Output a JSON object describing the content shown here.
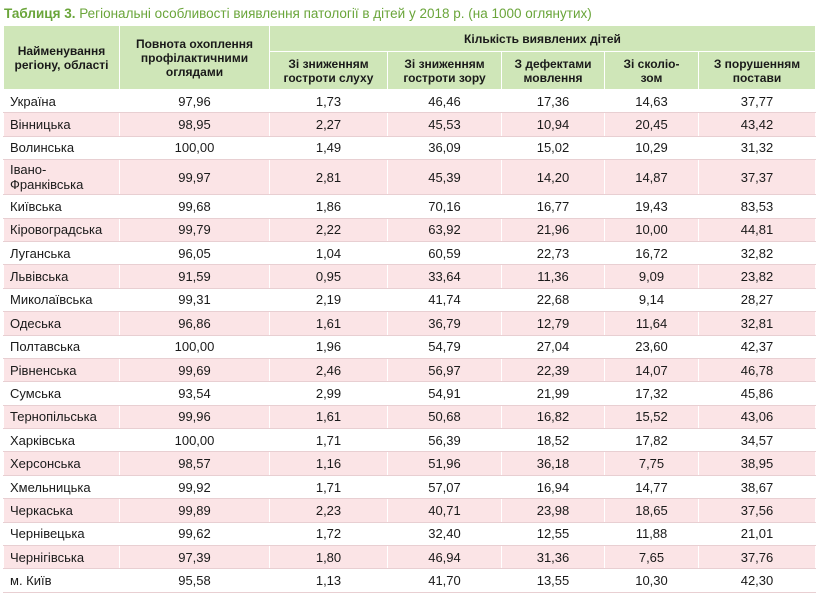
{
  "caption": {
    "label": "Таблиця 3.",
    "text": "Регіональні особливості виявлення патології в дітей у 2018 р. (на 1000 оглянутих)"
  },
  "header": {
    "region": "Найменування регіону, області",
    "coverage": "Повнота охоплення профілактичними оглядами",
    "group": "Кількість виявлених дітей",
    "hearing": "Зі зниженням гостроти слуху",
    "vision": "Зі зниженням гостроти зору",
    "speech": "З дефектами мовлення",
    "scoliosis": "Зі сколіо-зом",
    "posture": "З порушенням постави"
  },
  "rows": [
    {
      "region": "Україна",
      "coverage": "97,96",
      "hearing": "1,73",
      "vision": "46,46",
      "speech": "17,36",
      "scoliosis": "14,63",
      "posture": "37,77"
    },
    {
      "region": "Вінницька",
      "coverage": "98,95",
      "hearing": "2,27",
      "vision": "45,53",
      "speech": "10,94",
      "scoliosis": "20,45",
      "posture": "43,42"
    },
    {
      "region": "Волинська",
      "coverage": "100,00",
      "hearing": "1,49",
      "vision": "36,09",
      "speech": "15,02",
      "scoliosis": "10,29",
      "posture": "31,32"
    },
    {
      "region": "Івано-Франківська",
      "coverage": "99,97",
      "hearing": "2,81",
      "vision": "45,39",
      "speech": "14,20",
      "scoliosis": "14,87",
      "posture": "37,37"
    },
    {
      "region": "Київська",
      "coverage": "99,68",
      "hearing": "1,86",
      "vision": "70,16",
      "speech": "16,77",
      "scoliosis": "19,43",
      "posture": "83,53"
    },
    {
      "region": "Кіровоградська",
      "coverage": "99,79",
      "hearing": "2,22",
      "vision": "63,92",
      "speech": "21,96",
      "scoliosis": "10,00",
      "posture": "44,81"
    },
    {
      "region": "Луганська",
      "coverage": "96,05",
      "hearing": "1,04",
      "vision": "60,59",
      "speech": "22,73",
      "scoliosis": "16,72",
      "posture": "32,82"
    },
    {
      "region": "Львівська",
      "coverage": "91,59",
      "hearing": "0,95",
      "vision": "33,64",
      "speech": "11,36",
      "scoliosis": "9,09",
      "posture": "23,82"
    },
    {
      "region": "Миколаївська",
      "coverage": "99,31",
      "hearing": "2,19",
      "vision": "41,74",
      "speech": "22,68",
      "scoliosis": "9,14",
      "posture": "28,27"
    },
    {
      "region": "Одеська",
      "coverage": "96,86",
      "hearing": "1,61",
      "vision": "36,79",
      "speech": "12,79",
      "scoliosis": "11,64",
      "posture": "32,81"
    },
    {
      "region": "Полтавська",
      "coverage": "100,00",
      "hearing": "1,96",
      "vision": "54,79",
      "speech": "27,04",
      "scoliosis": "23,60",
      "posture": "42,37"
    },
    {
      "region": "Рівненська",
      "coverage": "99,69",
      "hearing": "2,46",
      "vision": "56,97",
      "speech": "22,39",
      "scoliosis": "14,07",
      "posture": "46,78"
    },
    {
      "region": "Сумська",
      "coverage": "93,54",
      "hearing": "2,99",
      "vision": "54,91",
      "speech": "21,99",
      "scoliosis": "17,32",
      "posture": "45,86"
    },
    {
      "region": "Тернопільська",
      "coverage": "99,96",
      "hearing": "1,61",
      "vision": "50,68",
      "speech": "16,82",
      "scoliosis": "15,52",
      "posture": "43,06"
    },
    {
      "region": "Харківська",
      "coverage": "100,00",
      "hearing": "1,71",
      "vision": "56,39",
      "speech": "18,52",
      "scoliosis": "17,82",
      "posture": "34,57"
    },
    {
      "region": "Херсонська",
      "coverage": "98,57",
      "hearing": "1,16",
      "vision": "51,96",
      "speech": "36,18",
      "scoliosis": "7,75",
      "posture": "38,95"
    },
    {
      "region": "Хмельницька",
      "coverage": "99,92",
      "hearing": "1,71",
      "vision": "57,07",
      "speech": "16,94",
      "scoliosis": "14,77",
      "posture": "38,67"
    },
    {
      "region": "Черкаська",
      "coverage": "99,89",
      "hearing": "2,23",
      "vision": "40,71",
      "speech": "23,98",
      "scoliosis": "18,65",
      "posture": "37,56"
    },
    {
      "region": "Чернівецька",
      "coverage": "99,62",
      "hearing": "1,72",
      "vision": "32,40",
      "speech": "12,55",
      "scoliosis": "11,88",
      "posture": "21,01"
    },
    {
      "region": "Чернігівська",
      "coverage": "97,39",
      "hearing": "1,80",
      "vision": "46,94",
      "speech": "31,36",
      "scoliosis": "7,65",
      "posture": "37,76"
    },
    {
      "region": "м. Київ",
      "coverage": "95,58",
      "hearing": "1,13",
      "vision": "41,70",
      "speech": "13,55",
      "scoliosis": "10,30",
      "posture": "42,30"
    }
  ],
  "colors": {
    "caption": "#6aa53a",
    "header_bg": "#cfe6b8",
    "row_alt_bg": "#fbe4e6"
  }
}
